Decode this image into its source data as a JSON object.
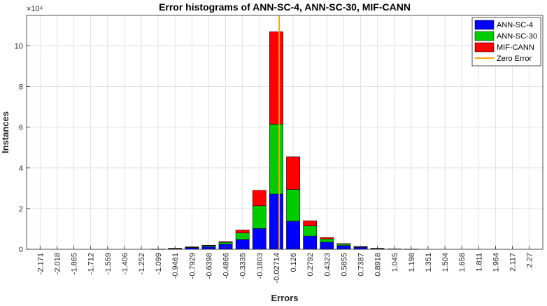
{
  "chart_data": {
    "type": "bar",
    "stacked": true,
    "title": "Error histograms of ANN-SC-4, ANN-SC-30, MIF-CANN",
    "xlabel": "Errors",
    "ylabel": "Instances",
    "y_exponent_label": "×10⁴",
    "y_scale": 10000,
    "ylim": [
      0,
      11.5
    ],
    "y_ticks": [
      0,
      2,
      4,
      6,
      8,
      10
    ],
    "y_tick_labels": [
      "0",
      "2",
      "4",
      "6",
      "8",
      "10"
    ],
    "grid": true,
    "legend_position": "top-right",
    "categories": [
      "-2.171",
      "-2.018",
      "-1.865",
      "-1.712",
      "-1.559",
      "-1.406",
      "-1.252",
      "-1.099",
      "-0.9461",
      "-0.7929",
      "-0.6398",
      "-0.4866",
      "-0.3335",
      "-0.1803",
      "-0.02714",
      "0.126",
      "0.2792",
      "0.4323",
      "0.5855",
      "0.7387",
      "0.8918",
      "1.045",
      "1.198",
      "1.351",
      "1.504",
      "1.658",
      "1.811",
      "1.964",
      "2.117",
      "2.27"
    ],
    "series": [
      {
        "name": "ANN-SC-4",
        "color": "#0000ff",
        "values": [
          0,
          0,
          0,
          0,
          0,
          0,
          0,
          0,
          0.02,
          0.08,
          0.13,
          0.25,
          0.48,
          1.02,
          2.72,
          1.38,
          0.65,
          0.35,
          0.18,
          0.1,
          0.04,
          0.02,
          0.01,
          0,
          0,
          0,
          0,
          0,
          0,
          0
        ]
      },
      {
        "name": "ANN-SC-30",
        "color": "#00cc00",
        "values": [
          0,
          0,
          0,
          0,
          0,
          0,
          0,
          0.01,
          0.02,
          0.03,
          0.05,
          0.09,
          0.32,
          1.12,
          3.43,
          1.56,
          0.5,
          0.16,
          0.07,
          0.03,
          0.01,
          0,
          0,
          0,
          0,
          0,
          0,
          0,
          0,
          0
        ]
      },
      {
        "name": "MIF-CANN",
        "color": "#ff0000",
        "values": [
          0,
          0,
          0,
          0,
          0,
          0,
          0,
          0,
          0.01,
          0.01,
          0.02,
          0.04,
          0.15,
          0.76,
          4.55,
          1.61,
          0.25,
          0.07,
          0.03,
          0.01,
          0,
          0,
          0,
          0,
          0,
          0,
          0,
          0,
          0,
          0
        ]
      }
    ],
    "reference_line": {
      "name": "Zero Error",
      "x": 0,
      "color": "#ffa500"
    },
    "bin_start": -2.171,
    "bin_width": 0.15315
  }
}
